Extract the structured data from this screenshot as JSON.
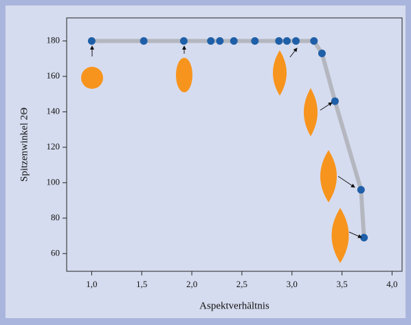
{
  "chart_data": {
    "type": "line",
    "x_label": "Aspektverhältnis",
    "y_label": "Spitzenwinkel 2Θ",
    "x": [
      1.0,
      1.52,
      1.92,
      2.19,
      2.28,
      2.42,
      2.63,
      2.87,
      2.95,
      3.04,
      3.22,
      3.3,
      3.43,
      3.69,
      3.72
    ],
    "series": [
      {
        "color": "#1f5fa8",
        "values": [
          180,
          180,
          180,
          180,
          180,
          180,
          180,
          180,
          180,
          180,
          180,
          173,
          146,
          96,
          69
        ]
      }
    ],
    "line_color": "#b4b7bf",
    "xlim": [
      0.75,
      4.1
    ],
    "ylim": [
      50,
      193
    ],
    "xticks": [
      {
        "value": 1,
        "label": "1,0"
      },
      {
        "value": 1.5,
        "label": "1,5"
      },
      {
        "value": 2,
        "label": "2,0"
      },
      {
        "value": 2.5,
        "label": "2,5"
      },
      {
        "value": 3,
        "label": "3,0"
      },
      {
        "value": 3.5,
        "label": "3,5"
      },
      {
        "value": 4,
        "label": "4,0"
      }
    ],
    "yticks": [
      60,
      80,
      100,
      120,
      140,
      160,
      180
    ]
  }
}
